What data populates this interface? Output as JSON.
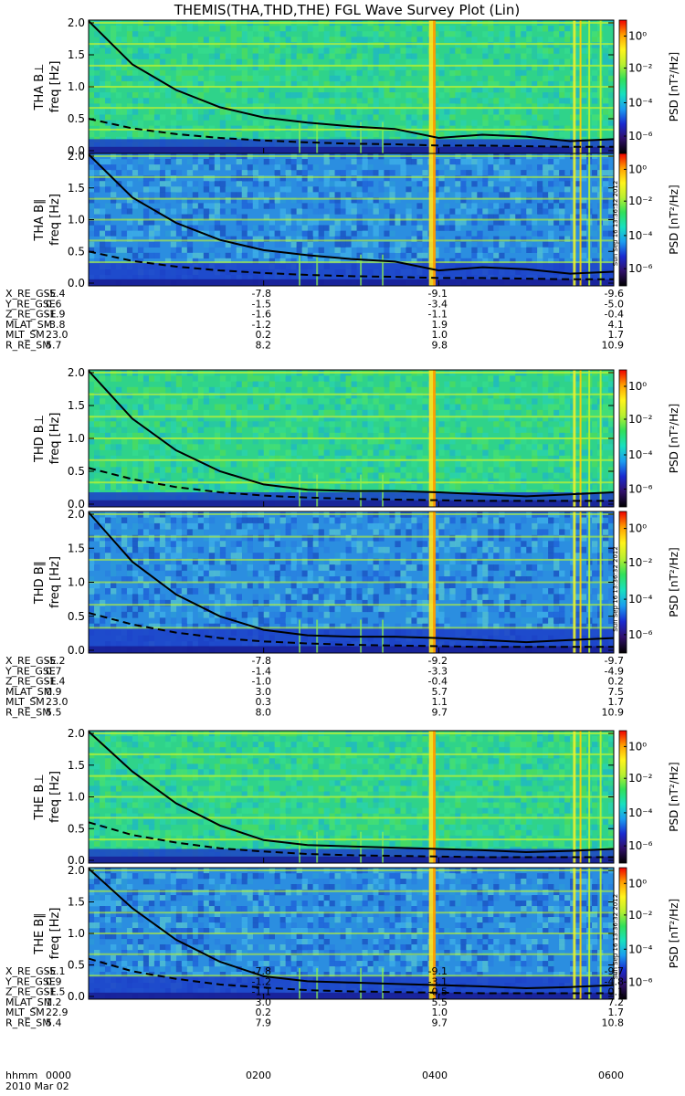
{
  "title": "THEMIS(THA,THD,THE) FGL Wave Survey Plot (Lin)",
  "date_label": "2010 Mar 02",
  "hhmm_label": "hhmm",
  "time_ticks": [
    "0000",
    "0200",
    "0400",
    "0600"
  ],
  "colorbar": {
    "label": "PSD [nT²/Hz]",
    "ticks": [
      "10⁰",
      "10⁻²",
      "10⁻⁴",
      "10⁻⁶"
    ],
    "colors": [
      "#000000",
      "#30106a",
      "#1a2ad0",
      "#1b9df0",
      "#18e0c0",
      "#31e05a",
      "#b8f030",
      "#fff41c",
      "#ff9f00",
      "#f00000"
    ]
  },
  "stamp": "Sun Sep 16 13:36:32 2012",
  "chart_data": {
    "type": "heatmap",
    "x_range_hhmm": [
      "0000",
      "0600"
    ],
    "x_ticks": [
      "0000",
      "0200",
      "0400",
      "0600"
    ],
    "y_unit": "Hz",
    "ylim": [
      0,
      2.0
    ],
    "y_ticks": [
      "0.0",
      "0.5",
      "1.0",
      "1.5",
      "2.0"
    ],
    "z_label": "PSD [nT²/Hz]",
    "z_range_log10": [
      -7,
      1
    ],
    "panels": [
      {
        "name": "THA B⊥",
        "ylabel": "freq [Hz]",
        "solid_x": [
          0,
          0.5,
          1,
          1.5,
          2,
          2.5,
          3,
          3.5,
          4,
          4.5,
          5,
          5.5,
          6
        ],
        "solid_y": [
          2.05,
          1.35,
          0.95,
          0.68,
          0.52,
          0.44,
          0.38,
          0.34,
          0.2,
          0.25,
          0.22,
          0.15,
          0.18
        ],
        "dashed_y": [
          0.5,
          0.35,
          0.26,
          0.2,
          0.16,
          0.13,
          0.11,
          0.1,
          0.08,
          0.08,
          0.07,
          0.06,
          0.06
        ]
      },
      {
        "name": "THA B∥",
        "ylabel": "freq [Hz]",
        "solid_x": [
          0,
          0.5,
          1,
          1.5,
          2,
          2.5,
          3,
          3.5,
          4,
          4.5,
          5,
          5.5,
          6
        ],
        "solid_y": [
          2.05,
          1.35,
          0.95,
          0.68,
          0.52,
          0.44,
          0.38,
          0.34,
          0.2,
          0.25,
          0.22,
          0.15,
          0.18
        ],
        "dashed_y": [
          0.5,
          0.35,
          0.26,
          0.2,
          0.16,
          0.13,
          0.11,
          0.1,
          0.08,
          0.08,
          0.07,
          0.06,
          0.06
        ]
      },
      {
        "name": "THD B⊥",
        "ylabel": "freq [Hz]",
        "solid_x": [
          0,
          0.5,
          1,
          1.5,
          2,
          2.5,
          3,
          3.5,
          4,
          4.5,
          5,
          5.5,
          6
        ],
        "solid_y": [
          2.05,
          1.3,
          0.82,
          0.5,
          0.3,
          0.22,
          0.2,
          0.2,
          0.18,
          0.15,
          0.12,
          0.15,
          0.18
        ],
        "dashed_y": [
          0.55,
          0.38,
          0.26,
          0.18,
          0.13,
          0.1,
          0.08,
          0.07,
          0.06,
          0.05,
          0.05,
          0.05,
          0.05
        ]
      },
      {
        "name": "THD B∥",
        "ylabel": "freq [Hz]",
        "solid_x": [
          0,
          0.5,
          1,
          1.5,
          2,
          2.5,
          3,
          3.5,
          4,
          4.5,
          5,
          5.5,
          6
        ],
        "solid_y": [
          2.05,
          1.3,
          0.82,
          0.5,
          0.3,
          0.22,
          0.2,
          0.2,
          0.18,
          0.15,
          0.12,
          0.15,
          0.18
        ],
        "dashed_y": [
          0.55,
          0.38,
          0.26,
          0.18,
          0.13,
          0.1,
          0.08,
          0.07,
          0.06,
          0.05,
          0.05,
          0.05,
          0.05
        ]
      },
      {
        "name": "THE B⊥",
        "ylabel": "freq [Hz]",
        "solid_x": [
          0,
          0.5,
          1,
          1.5,
          2,
          2.5,
          3,
          3.5,
          4,
          4.5,
          5,
          5.5,
          6
        ],
        "solid_y": [
          2.1,
          1.4,
          0.9,
          0.55,
          0.32,
          0.24,
          0.22,
          0.2,
          0.18,
          0.16,
          0.13,
          0.15,
          0.18
        ],
        "dashed_y": [
          0.6,
          0.4,
          0.28,
          0.19,
          0.14,
          0.1,
          0.08,
          0.07,
          0.06,
          0.05,
          0.05,
          0.05,
          0.05
        ]
      },
      {
        "name": "THE B∥",
        "ylabel": "freq [Hz]",
        "solid_x": [
          0,
          0.5,
          1,
          1.5,
          2,
          2.5,
          3,
          3.5,
          4,
          4.5,
          5,
          5.5,
          6
        ],
        "solid_y": [
          2.1,
          1.4,
          0.9,
          0.55,
          0.32,
          0.24,
          0.22,
          0.2,
          0.18,
          0.16,
          0.13,
          0.15,
          0.18
        ],
        "dashed_y": [
          0.6,
          0.4,
          0.28,
          0.19,
          0.14,
          0.1,
          0.08,
          0.07,
          0.06,
          0.05,
          0.05,
          0.05,
          0.05
        ]
      }
    ],
    "ephemeris": [
      {
        "rows": [
          {
            "label": "X_RE_GSE",
            "values": [
              "-5.4",
              "-7.8",
              "-9.1",
              "-9.6"
            ]
          },
          {
            "label": "Y_RE_GSE",
            "values": [
              "0.6",
              "-1.5",
              "-3.4",
              "-5.0"
            ]
          },
          {
            "label": "Z_RE_GSE",
            "values": [
              "-1.9",
              "-1.6",
              "-1.1",
              "-0.4"
            ]
          },
          {
            "label": "MLAT_SM",
            "values": [
              "-3.8",
              "-1.2",
              "1.9",
              "4.1"
            ]
          },
          {
            "label": "MLT_SM",
            "values": [
              "23.0",
              "0.2",
              "1.0",
              "1.7"
            ]
          },
          {
            "label": "R_RE_SM",
            "values": [
              "5.7",
              "8.2",
              "9.8",
              "10.9"
            ]
          }
        ]
      },
      {
        "rows": [
          {
            "label": "X_RE_GSE",
            "values": [
              "-5.2",
              "-7.8",
              "-9.2",
              "-9.7"
            ]
          },
          {
            "label": "Y_RE_GSE",
            "values": [
              "0.7",
              "-1.4",
              "-3.3",
              "-4.9"
            ]
          },
          {
            "label": "Z_RE_GSE",
            "values": [
              "-1.4",
              "-1.0",
              "-0.4",
              "0.2"
            ]
          },
          {
            "label": "MLAT_SM",
            "values": [
              "0.9",
              "3.0",
              "5.7",
              "7.5"
            ]
          },
          {
            "label": "MLT_SM",
            "values": [
              "23.0",
              "0.3",
              "1.1",
              "1.7"
            ]
          },
          {
            "label": "R_RE_SM",
            "values": [
              "5.5",
              "8.0",
              "9.7",
              "10.9"
            ]
          }
        ]
      },
      {
        "rows": [
          {
            "label": "X_RE_GSE",
            "values": [
              "-5.1",
              "-7.8",
              "-9.1",
              "-9.7"
            ]
          },
          {
            "label": "Y_RE_GSE",
            "values": [
              "0.9",
              "-1.2",
              "-3.1",
              "-4.8"
            ]
          },
          {
            "label": "Z_RE_GSE",
            "values": [
              "-1.5",
              "-1.1",
              "-0.5",
              "0.1"
            ]
          },
          {
            "label": "MLAT_SM",
            "values": [
              "1.2",
              "3.0",
              "5.5",
              "7.2"
            ]
          },
          {
            "label": "MLT_SM",
            "values": [
              "22.9",
              "0.2",
              "1.0",
              "1.7"
            ]
          },
          {
            "label": "R_RE_SM",
            "values": [
              "5.4",
              "7.9",
              "9.7",
              "10.8"
            ]
          }
        ]
      }
    ]
  }
}
